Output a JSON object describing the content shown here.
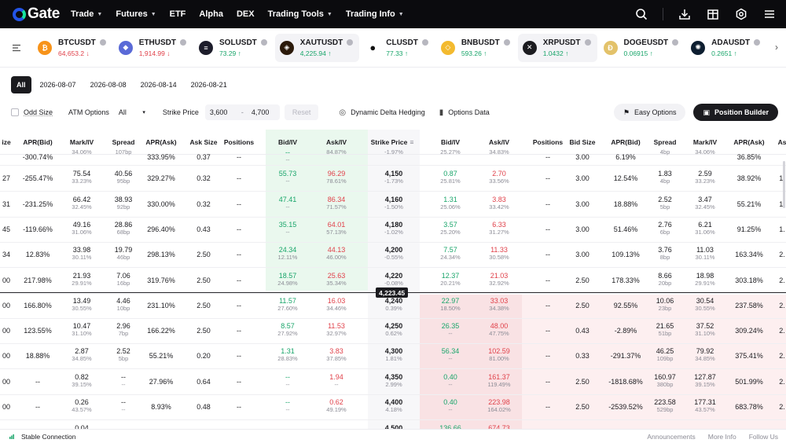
{
  "nav": {
    "logo": "Gate",
    "items": [
      {
        "label": "Trade",
        "caret": true
      },
      {
        "label": "Futures",
        "caret": true
      },
      {
        "label": "ETF",
        "caret": false
      },
      {
        "label": "Alpha",
        "caret": false
      },
      {
        "label": "DEX",
        "caret": false
      },
      {
        "label": "Trading Tools",
        "caret": true
      },
      {
        "label": "Trading Info",
        "caret": true
      }
    ],
    "right_icons": [
      "search-icon",
      "download-icon",
      "gift-icon",
      "settings-icon",
      "menu-icon"
    ]
  },
  "tickers": [
    {
      "name": "BTCUSDT",
      "price": "64,653.2",
      "dir": "down",
      "color": "#f7931a",
      "glyph": "₿"
    },
    {
      "name": "ETHUSDT",
      "price": "1,914.99",
      "dir": "down",
      "color": "#5a6ad7",
      "glyph": "◆"
    },
    {
      "name": "SOLUSDT",
      "price": "73.29",
      "dir": "up",
      "color": "#1d1d2b",
      "glyph": "≡"
    },
    {
      "name": "XAUTUSDT",
      "price": "4,225.94",
      "dir": "up",
      "color": "#2b1a0a",
      "glyph": "◈",
      "active": true
    },
    {
      "name": "CLUSDT",
      "price": "77.33",
      "dir": "up",
      "color": "#ffffff",
      "glyph": "●"
    },
    {
      "name": "BNBUSDT",
      "price": "593.26",
      "dir": "up",
      "color": "#f3ba2f",
      "glyph": "◇"
    },
    {
      "name": "XRPUSDT",
      "price": "1.0432",
      "dir": "up",
      "color": "#1b1b1f",
      "glyph": "✕",
      "active": true
    },
    {
      "name": "DOGEUSDT",
      "price": "0.06915",
      "dir": "up",
      "color": "#e3c26a",
      "glyph": "Ð"
    },
    {
      "name": "ADAUSDT",
      "price": "0.2651",
      "dir": "up",
      "color": "#0d1e30",
      "glyph": "✺"
    }
  ],
  "dates": {
    "items": [
      "All",
      "2026-08-07",
      "2026-08-08",
      "2026-08-14",
      "2026-08-21"
    ],
    "active": "All"
  },
  "filters": {
    "odd_size": "Odd Size",
    "atm_label": "ATM Options",
    "atm_value": "All",
    "strike_label": "Strike Price",
    "strike_min": "3,600",
    "strike_dash": "-",
    "strike_max": "4,700",
    "reset": "Reset",
    "dynamic_delta": "Dynamic Delta Hedging",
    "options_data": "Options Data",
    "easy_options": "Easy Options",
    "position_builder": "Position Builder"
  },
  "table": {
    "call_headers": [
      "ize",
      "APR(Bid)",
      "Mark/IV",
      "Spread",
      "APR(Ask)",
      "Ask Size",
      "Positions",
      "Bid/IV",
      "Ask/IV"
    ],
    "strike_header": "Strike Price",
    "put_headers": [
      "Bid/IV",
      "Ask/IV",
      "Positions",
      "Bid Size",
      "APR(Bid)",
      "Spread",
      "Mark/IV",
      "APR(Ask)",
      "As"
    ],
    "underlying_price": "4,223.45",
    "rows": [
      {
        "c_size": "",
        "c_aprbid": "-300.74%",
        "c_mark": "",
        "c_mark_iv": "34.06%",
        "c_spread": "",
        "c_spread_bp": "107bp",
        "c_aprask": "333.95%",
        "c_asksize": "0.37",
        "c_pos": "--",
        "c_bid": "--",
        "c_bid_iv": "--",
        "c_ask": "",
        "c_ask_iv": "84.87%",
        "strike": "",
        "strike_pct": "-1.97%",
        "p_bid": "",
        "p_bid_iv": "25.27%",
        "p_ask": "",
        "p_ask_iv": "34.83%",
        "p_pos": "--",
        "p_bidsize": "3.00",
        "p_aprbid": "6.19%",
        "p_spread": "",
        "p_spread_bp": "4bp",
        "p_mark": "",
        "p_mark_iv": "34.06%",
        "p_aprask": "36.85%",
        "p_as": ""
      },
      {
        "c_size": "27",
        "c_aprbid": "-255.47%",
        "c_mark": "75.54",
        "c_mark_iv": "33.23%",
        "c_spread": "40.56",
        "c_spread_bp": "95bp",
        "c_aprask": "329.27%",
        "c_asksize": "0.32",
        "c_pos": "--",
        "c_bid": "55.73",
        "c_bid_iv": "--",
        "c_ask": "96.29",
        "c_ask_iv": "78.61%",
        "strike": "4,150",
        "strike_pct": "-1.73%",
        "p_bid": "0.87",
        "p_bid_iv": "25.81%",
        "p_ask": "2.70",
        "p_ask_iv": "33.56%",
        "p_pos": "--",
        "p_bidsize": "3.00",
        "p_aprbid": "12.54%",
        "p_spread": "1.83",
        "p_spread_bp": "4bp",
        "p_mark": "2.59",
        "p_mark_iv": "33.23%",
        "p_aprask": "38.92%",
        "p_as": "1."
      },
      {
        "c_size": "31",
        "c_aprbid": "-231.25%",
        "c_mark": "66.42",
        "c_mark_iv": "32.45%",
        "c_spread": "38.93",
        "c_spread_bp": "92bp",
        "c_aprask": "330.00%",
        "c_asksize": "0.32",
        "c_pos": "--",
        "c_bid": "47.41",
        "c_bid_iv": "--",
        "c_ask": "86.34",
        "c_ask_iv": "71.57%",
        "strike": "4,160",
        "strike_pct": "-1.50%",
        "p_bid": "1.31",
        "p_bid_iv": "25.06%",
        "p_ask": "3.83",
        "p_ask_iv": "33.42%",
        "p_pos": "--",
        "p_bidsize": "3.00",
        "p_aprbid": "18.88%",
        "p_spread": "2.52",
        "p_spread_bp": "5bp",
        "p_mark": "3.47",
        "p_mark_iv": "32.45%",
        "p_aprask": "55.21%",
        "p_as": "1."
      },
      {
        "c_size": "45",
        "c_aprbid": "-119.66%",
        "c_mark": "49.16",
        "c_mark_iv": "31.06%",
        "c_spread": "28.86",
        "c_spread_bp": "68bp",
        "c_aprask": "296.40%",
        "c_asksize": "0.43",
        "c_pos": "--",
        "c_bid": "35.15",
        "c_bid_iv": "--",
        "c_ask": "64.01",
        "c_ask_iv": "57.13%",
        "strike": "4,180",
        "strike_pct": "-1.02%",
        "p_bid": "3.57",
        "p_bid_iv": "25.20%",
        "p_ask": "6.33",
        "p_ask_iv": "31.27%",
        "p_pos": "--",
        "p_bidsize": "3.00",
        "p_aprbid": "51.46%",
        "p_spread": "2.76",
        "p_spread_bp": "6bp",
        "p_mark": "6.21",
        "p_mark_iv": "31.06%",
        "p_aprask": "91.25%",
        "p_as": "1."
      },
      {
        "c_size": "34",
        "c_aprbid": "12.83%",
        "c_mark": "33.98",
        "c_mark_iv": "30.11%",
        "c_spread": "19.79",
        "c_spread_bp": "46bp",
        "c_aprask": "298.13%",
        "c_asksize": "2.50",
        "c_pos": "--",
        "c_bid": "24.34",
        "c_bid_iv": "12.11%",
        "c_ask": "44.13",
        "c_ask_iv": "46.00%",
        "strike": "4,200",
        "strike_pct": "-0.55%",
        "p_bid": "7.57",
        "p_bid_iv": "24.34%",
        "p_ask": "11.33",
        "p_ask_iv": "30.58%",
        "p_pos": "--",
        "p_bidsize": "3.00",
        "p_aprbid": "109.13%",
        "p_spread": "3.76",
        "p_spread_bp": "8bp",
        "p_mark": "11.03",
        "p_mark_iv": "30.11%",
        "p_aprask": "163.34%",
        "p_as": "2."
      },
      {
        "c_size": "00",
        "c_aprbid": "217.98%",
        "c_mark": "21.93",
        "c_mark_iv": "29.91%",
        "c_spread": "7.06",
        "c_spread_bp": "16bp",
        "c_aprask": "319.76%",
        "c_asksize": "2.50",
        "c_pos": "--",
        "c_bid": "18.57",
        "c_bid_iv": "24.98%",
        "c_ask": "25.63",
        "c_ask_iv": "35.34%",
        "strike": "4,220",
        "strike_pct": "-0.08%",
        "p_bid": "12.37",
        "p_bid_iv": "20.21%",
        "p_ask": "21.03",
        "p_ask_iv": "32.92%",
        "p_pos": "--",
        "p_bidsize": "2.50",
        "p_aprbid": "178.33%",
        "p_spread": "8.66",
        "p_spread_bp": "20bp",
        "p_mark": "18.98",
        "p_mark_iv": "29.91%",
        "p_aprask": "303.18%",
        "p_as": "2."
      },
      {
        "c_size": "00",
        "c_aprbid": "166.80%",
        "c_mark": "13.49",
        "c_mark_iv": "30.55%",
        "c_spread": "4.46",
        "c_spread_bp": "10bp",
        "c_aprask": "231.10%",
        "c_asksize": "2.50",
        "c_pos": "--",
        "c_bid": "11.57",
        "c_bid_iv": "27.60%",
        "c_ask": "16.03",
        "c_ask_iv": "34.46%",
        "strike": "4,240",
        "strike_pct": "0.39%",
        "p_bid": "22.97",
        "p_bid_iv": "18.50%",
        "p_ask": "33.03",
        "p_ask_iv": "34.38%",
        "p_pos": "--",
        "p_bidsize": "2.50",
        "p_aprbid": "92.55%",
        "p_spread": "10.06",
        "p_spread_bp": "23bp",
        "p_mark": "30.54",
        "p_mark_iv": "30.55%",
        "p_aprask": "237.58%",
        "p_as": "2."
      },
      {
        "c_size": "00",
        "c_aprbid": "123.55%",
        "c_mark": "10.47",
        "c_mark_iv": "31.10%",
        "c_spread": "2.96",
        "c_spread_bp": "7bp",
        "c_aprask": "166.22%",
        "c_asksize": "2.50",
        "c_pos": "--",
        "c_bid": "8.57",
        "c_bid_iv": "27.92%",
        "c_ask": "11.53",
        "c_ask_iv": "32.97%",
        "strike": "4,250",
        "strike_pct": "0.62%",
        "p_bid": "26.35",
        "p_bid_iv": "--",
        "p_ask": "48.00",
        "p_ask_iv": "47.75%",
        "p_pos": "--",
        "p_bidsize": "0.43",
        "p_aprbid": "-2.89%",
        "p_spread": "21.65",
        "p_spread_bp": "51bp",
        "p_mark": "37.52",
        "p_mark_iv": "31.10%",
        "p_aprask": "309.24%",
        "p_as": "2."
      },
      {
        "c_size": "00",
        "c_aprbid": "18.88%",
        "c_mark": "2.87",
        "c_mark_iv": "34.85%",
        "c_spread": "2.52",
        "c_spread_bp": "5bp",
        "c_aprask": "55.21%",
        "c_asksize": "0.20",
        "c_pos": "--",
        "c_bid": "1.31",
        "c_bid_iv": "28.83%",
        "c_ask": "3.83",
        "c_ask_iv": "37.85%",
        "strike": "4,300",
        "strike_pct": "1.81%",
        "p_bid": "56.34",
        "p_bid_iv": "--",
        "p_ask": "102.59",
        "p_ask_iv": "81.00%",
        "p_pos": "--",
        "p_bidsize": "0.33",
        "p_aprbid": "-291.37%",
        "p_spread": "46.25",
        "p_spread_bp": "109bp",
        "p_mark": "79.92",
        "p_mark_iv": "34.85%",
        "p_aprask": "375.41%",
        "p_as": "2."
      },
      {
        "c_size": "00",
        "c_aprbid": "--",
        "c_mark": "0.82",
        "c_mark_iv": "39.15%",
        "c_spread": "--",
        "c_spread_bp": "--",
        "c_aprask": "27.96%",
        "c_asksize": "0.64",
        "c_pos": "--",
        "c_bid": "--",
        "c_bid_iv": "--",
        "c_ask": "1.94",
        "c_ask_iv": "--",
        "strike": "4,350",
        "strike_pct": "2.99%",
        "p_bid": "0.40",
        "p_bid_iv": "--",
        "p_ask": "161.37",
        "p_ask_iv": "119.49%",
        "p_pos": "--",
        "p_bidsize": "2.50",
        "p_aprbid": "-1818.68%",
        "p_spread": "160.97",
        "p_spread_bp": "380bp",
        "p_mark": "127.87",
        "p_mark_iv": "39.15%",
        "p_aprask": "501.99%",
        "p_as": "2."
      },
      {
        "c_size": "00",
        "c_aprbid": "--",
        "c_mark": "0.26",
        "c_mark_iv": "43.57%",
        "c_spread": "--",
        "c_spread_bp": "--",
        "c_aprask": "8.93%",
        "c_asksize": "0.48",
        "c_pos": "--",
        "c_bid": "--",
        "c_bid_iv": "--",
        "c_ask": "0.62",
        "c_ask_iv": "49.19%",
        "strike": "4,400",
        "strike_pct": "4.18%",
        "p_bid": "0.40",
        "p_bid_iv": "--",
        "p_ask": "223.98",
        "p_ask_iv": "164.02%",
        "p_pos": "--",
        "p_bidsize": "2.50",
        "p_aprbid": "-2539.52%",
        "p_spread": "223.58",
        "p_spread_bp": "529bp",
        "p_mark": "177.31",
        "p_mark_iv": "43.57%",
        "p_aprask": "683.78%",
        "p_as": "2."
      },
      {
        "c_size": "",
        "c_aprbid": "",
        "c_mark": "0.04",
        "c_mark_iv": "",
        "c_spread": "",
        "c_spread_bp": "",
        "c_aprask": "",
        "c_asksize": "",
        "c_pos": "",
        "c_bid": "",
        "c_bid_iv": "",
        "c_ask": "",
        "c_ask_iv": "",
        "strike": "4,500",
        "strike_pct": "",
        "p_bid": "136.66",
        "p_bid_iv": "",
        "p_ask": "674.73",
        "p_ask_iv": "",
        "p_pos": "",
        "p_bidsize": "",
        "p_aprbid": "",
        "p_spread": "",
        "p_spread_bp": "",
        "p_mark": "",
        "p_mark_iv": "",
        "p_aprask": "",
        "p_as": ""
      }
    ]
  },
  "footer": {
    "status": "Stable Connection",
    "links": [
      "Announcements",
      "More Info",
      "Follow Us"
    ]
  },
  "colors": {
    "green": "#19a56a",
    "red": "#e0414a",
    "dark": "#1b1b1f"
  }
}
